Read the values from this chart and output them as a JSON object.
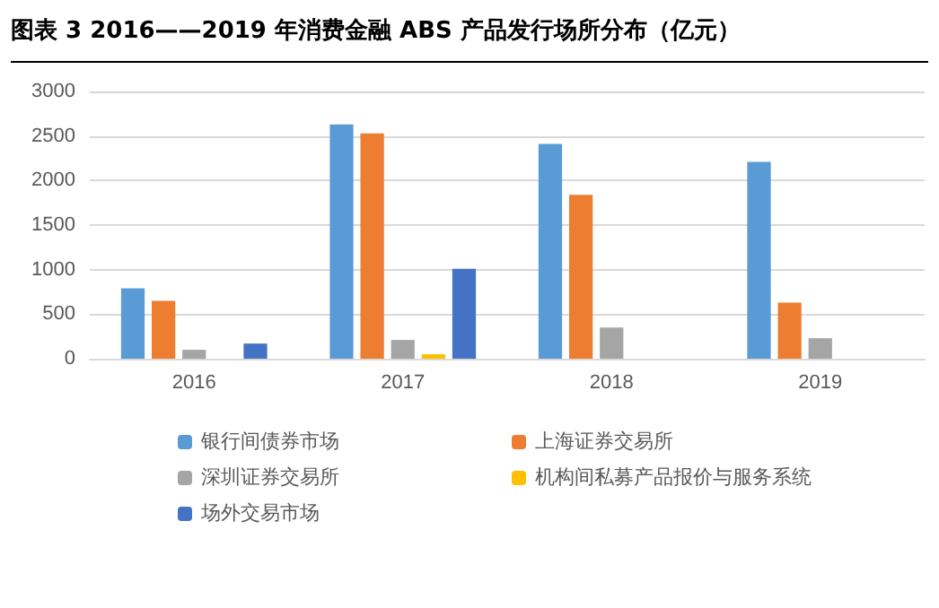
{
  "chart_data": {
    "type": "bar",
    "title": "图表 3   2016——2019 年消费金融 ABS 产品发行场所分布（亿元）",
    "categories": [
      "2016",
      "2017",
      "2018",
      "2019"
    ],
    "series": [
      {
        "name": "银行间债券市场",
        "color": "#5b9bd5",
        "values": [
          790,
          2630,
          2410,
          2210
        ]
      },
      {
        "name": "上海证券交易所",
        "color": "#ed7d31",
        "values": [
          650,
          2530,
          1840,
          630
        ]
      },
      {
        "name": "深圳证券交易所",
        "color": "#a5a5a5",
        "values": [
          100,
          210,
          350,
          230
        ]
      },
      {
        "name": "机构间私募产品报价与服务系统",
        "color": "#ffc000",
        "values": [
          null,
          50,
          null,
          null
        ]
      },
      {
        "name": "场外交易市场",
        "color": "#4472c4",
        "values": [
          170,
          1010,
          null,
          null
        ]
      }
    ],
    "ylim": [
      0,
      3000
    ],
    "yticks": [
      0,
      500,
      1000,
      1500,
      2000,
      2500,
      3000
    ],
    "grid": "y",
    "legend": "bottom"
  }
}
